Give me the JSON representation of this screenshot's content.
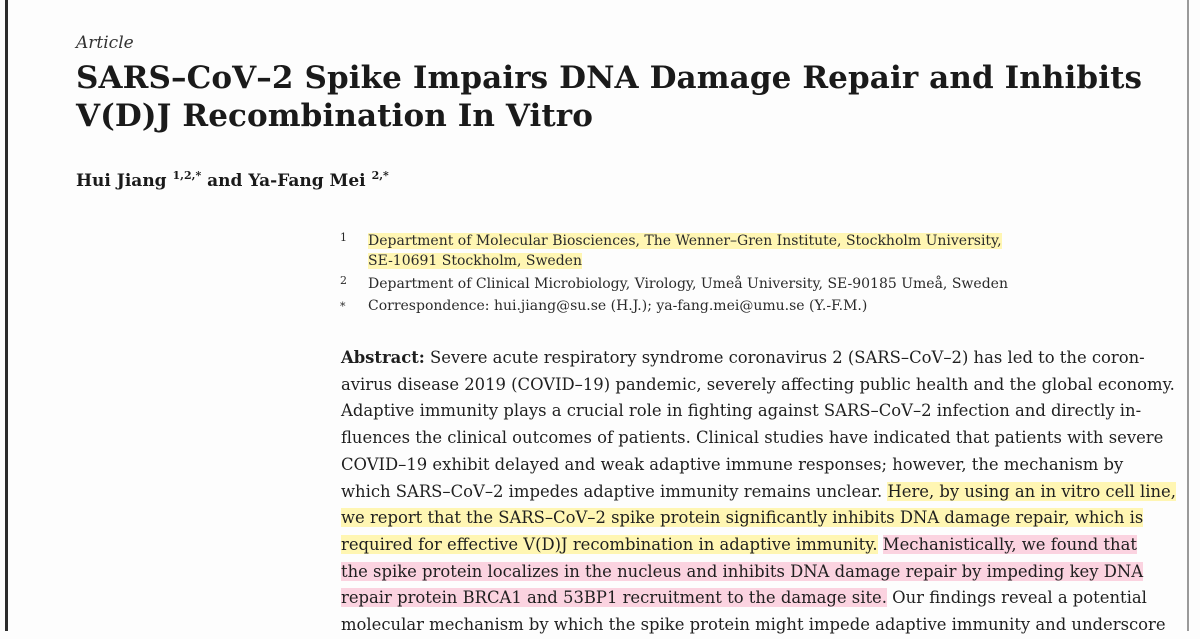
{
  "article_type": "Article",
  "title_lines": [
    "SARS–CoV–2 Spike Impairs DNA Damage Repair and Inhibits",
    "V(D)J Recombination In Vitro"
  ],
  "authors": {
    "author1": "Hui Jiang",
    "author1_sup": "1,2,*",
    "connector": "and",
    "author2": "Ya-Fang Mei",
    "author2_sup": "2,*"
  },
  "affiliations": [
    {
      "mark": "1",
      "lines": [
        "Department of Molecular Biosciences, The Wenner–Gren Institute, Stockholm University,",
        "SE-10691 Stockholm, Sweden"
      ]
    },
    {
      "mark": "2",
      "lines": [
        "Department of Clinical Microbiology, Virology, Umeå University, SE-90185 Umeå, Sweden"
      ]
    },
    {
      "mark": "*",
      "lines": [
        "Correspondence: hui.jiang@su.se (H.J.); ya-fang.mei@umu.se (Y.-F.M.)"
      ]
    }
  ],
  "abstract": {
    "label": "Abstract:",
    "lines": [
      [
        {
          "t": " Severe acute respiratory syndrome coronavirus 2 (SARS–CoV–2) has led to the coron-",
          "h": ""
        }
      ],
      [
        {
          "t": "avirus disease 2019 (COVID–19) pandemic, severely affecting public health and the global economy.",
          "h": ""
        }
      ],
      [
        {
          "t": "Adaptive immunity plays a crucial role in fighting against SARS–CoV–2 infection and directly in-",
          "h": ""
        }
      ],
      [
        {
          "t": "fluences the clinical outcomes of patients. Clinical studies have indicated that patients with severe",
          "h": ""
        }
      ],
      [
        {
          "t": "COVID–19 exhibit delayed and weak adaptive immune responses; however, the mechanism by",
          "h": ""
        }
      ],
      [
        {
          "t": "which SARS–CoV–2 impedes adaptive immunity remains unclear. ",
          "h": ""
        },
        {
          "t": "Here, by using an in vitro cell line,",
          "h": "y"
        }
      ],
      [
        {
          "t": "we report that the SARS–CoV–2 spike protein significantly inhibits DNA damage repair, which is",
          "h": "y"
        }
      ],
      [
        {
          "t": "required for effective V(D)J recombination in adaptive immunity.",
          "h": "y"
        },
        {
          "t": " ",
          "h": ""
        },
        {
          "t": "Mechanistically, we found that",
          "h": "p"
        }
      ],
      [
        {
          "t": "the spike protein localizes in the nucleus and inhibits DNA damage repair by impeding key DNA",
          "h": "p"
        }
      ],
      [
        {
          "t": "repair protein BRCA1 and 53BP1 recruitment to the damage site.",
          "h": "p"
        },
        {
          "t": " Our findings reveal a potential",
          "h": ""
        }
      ],
      [
        {
          "t": "molecular mechanism by which the spike protein might impede adaptive immunity and underscore",
          "h": ""
        }
      ]
    ]
  }
}
